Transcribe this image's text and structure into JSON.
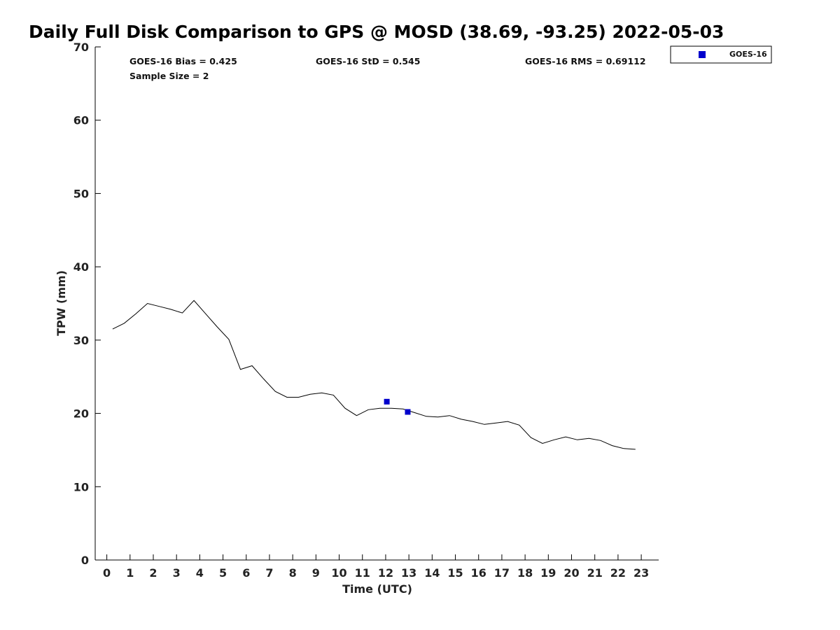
{
  "chart_data": {
    "type": "line",
    "title": "Daily Full Disk Comparison to GPS @ MOSD (38.69, -93.25) 2022-05-03",
    "xlabel": "Time (UTC)",
    "ylabel": "TPW (mm)",
    "xlim": [
      -0.5,
      23.75
    ],
    "ylim": [
      0,
      70
    ],
    "x_ticks": [
      0,
      1,
      2,
      3,
      4,
      5,
      6,
      7,
      8,
      9,
      10,
      11,
      12,
      13,
      14,
      15,
      16,
      17,
      18,
      19,
      20,
      21,
      22,
      23
    ],
    "y_ticks": [
      0,
      10,
      20,
      30,
      40,
      50,
      60,
      70
    ],
    "grid": false,
    "legend_position": "top-right",
    "stats": {
      "bias": "GOES-16 Bias = 0.425",
      "std": "GOES-16 StD = 0.545",
      "rms": "GOES-16 RMS = 0.69112",
      "sample": "Sample Size = 2"
    },
    "gps_series": {
      "color": "#000000",
      "x": [
        0.25,
        0.75,
        1.25,
        1.75,
        2.25,
        2.75,
        3.25,
        3.75,
        4.25,
        4.75,
        5.25,
        5.75,
        6.25,
        6.75,
        7.25,
        7.75,
        8.25,
        8.75,
        9.25,
        9.75,
        10.25,
        10.75,
        11.25,
        11.75,
        12.25,
        12.75,
        13.25,
        13.75,
        14.25,
        14.75,
        15.25,
        15.75,
        16.25,
        16.75,
        17.25,
        17.75,
        18.25,
        18.75,
        19.25,
        19.75,
        20.25,
        20.75,
        21.25,
        21.75,
        22.25,
        22.75
      ],
      "y": [
        31.5,
        32.3,
        33.6,
        35.0,
        34.6,
        34.2,
        33.7,
        35.4,
        33.6,
        31.8,
        30.1,
        26.0,
        26.5,
        24.7,
        23.0,
        22.2,
        22.2,
        22.6,
        22.8,
        22.5,
        20.7,
        19.7,
        20.5,
        20.7,
        20.7,
        20.6,
        20.1,
        19.6,
        19.5,
        19.7,
        19.2,
        18.9,
        18.5,
        18.7,
        18.9,
        18.4,
        16.7,
        15.9,
        16.4,
        16.8,
        16.4,
        16.6,
        16.3,
        15.6,
        15.2,
        15.1
      ]
    },
    "series": [
      {
        "name": "GOES-16",
        "color": "#0000cc",
        "x": [
          12.05,
          12.95
        ],
        "y": [
          21.6,
          20.2
        ]
      }
    ]
  }
}
